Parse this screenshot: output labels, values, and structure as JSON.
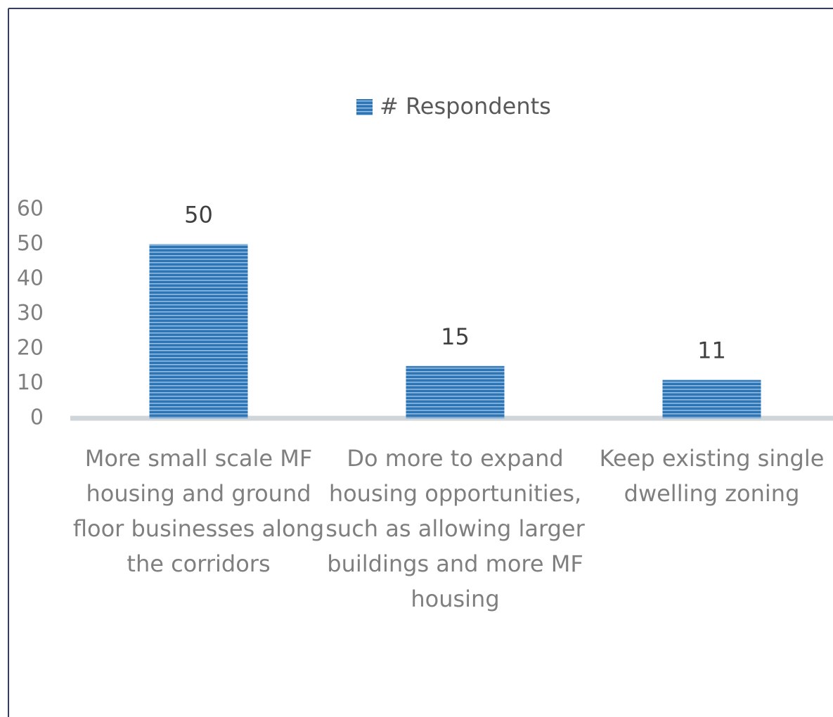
{
  "chart_data": {
    "type": "bar",
    "legend": "# Respondents",
    "categories": [
      "More small scale MF housing and ground floor businesses along the corridors",
      "Do more to expand housing opportunities, such as allowing larger buildings and more MF housing",
      "Keep existing single dwelling zoning"
    ],
    "values": [
      50,
      15,
      11
    ],
    "color": "#2e75b6",
    "ylim": [
      0,
      60
    ],
    "yticks": [
      0,
      10,
      20,
      30,
      40,
      50,
      60
    ],
    "grid": false
  }
}
